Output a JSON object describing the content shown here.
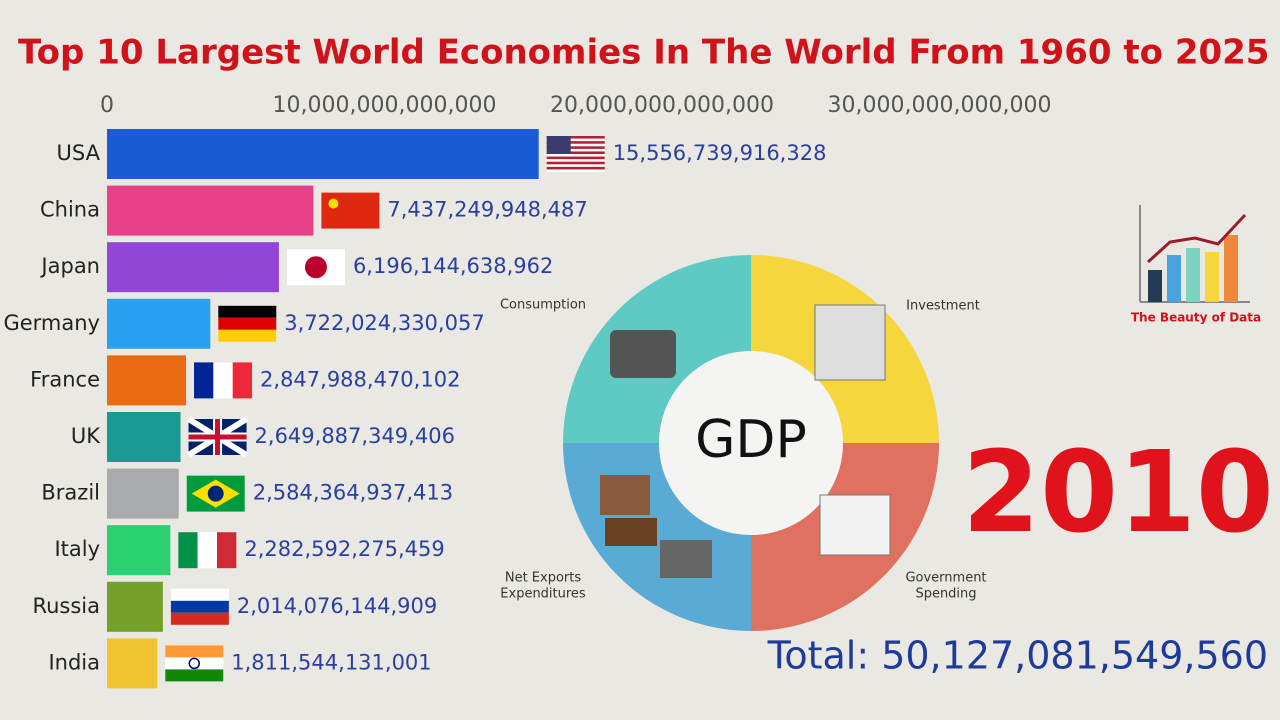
{
  "chart_data": {
    "type": "bar",
    "orientation": "horizontal",
    "title": "Top 10 Largest World Economies In The World From 1960 to 2025",
    "categories": [
      "USA",
      "China",
      "Japan",
      "Germany",
      "France",
      "UK",
      "Brazil",
      "Italy",
      "Russia",
      "India"
    ],
    "values": [
      15556739916328,
      7437249948487,
      6196144638962,
      3722024330057,
      2847988470102,
      2649887349406,
      2584364937413,
      2282592275459,
      2014076144909,
      1811544131001
    ],
    "value_labels": [
      "15,556,739,916,328",
      "7,437,249,948,487",
      "6,196,144,638,962",
      "3,722,024,330,057",
      "2,847,988,470,102",
      "2,649,887,349,406",
      "2,584,364,937,413",
      "2,282,592,275,459",
      "2,014,076,144,909",
      "1,811,544,131,001"
    ],
    "colors": [
      "#1b5bd6",
      "#e8418a",
      "#9146d6",
      "#2b9ff0",
      "#eb6a14",
      "#1a9a92",
      "#a9aaac",
      "#2bd070",
      "#74a12a",
      "#f0c331"
    ],
    "xlim": [
      0,
      35000000000000
    ],
    "xticks": [
      0,
      {
        "value": 10000000000000,
        "label": "10,000,000,000,000"
      },
      {
        "value": 20000000000000,
        "label": "20,000,000,000,000"
      },
      {
        "value": 30000000000000,
        "label": "30,000,000,000,000"
      }
    ],
    "grid": false,
    "year": "2010",
    "total": "Total: 50,127,081,549,560"
  },
  "diagram": {
    "center": "GDP",
    "labels": [
      "Consumption",
      "Investment",
      "Net Exports",
      "Expenditures",
      "Government",
      "Spending"
    ]
  },
  "logo": "The Beauty of Data"
}
